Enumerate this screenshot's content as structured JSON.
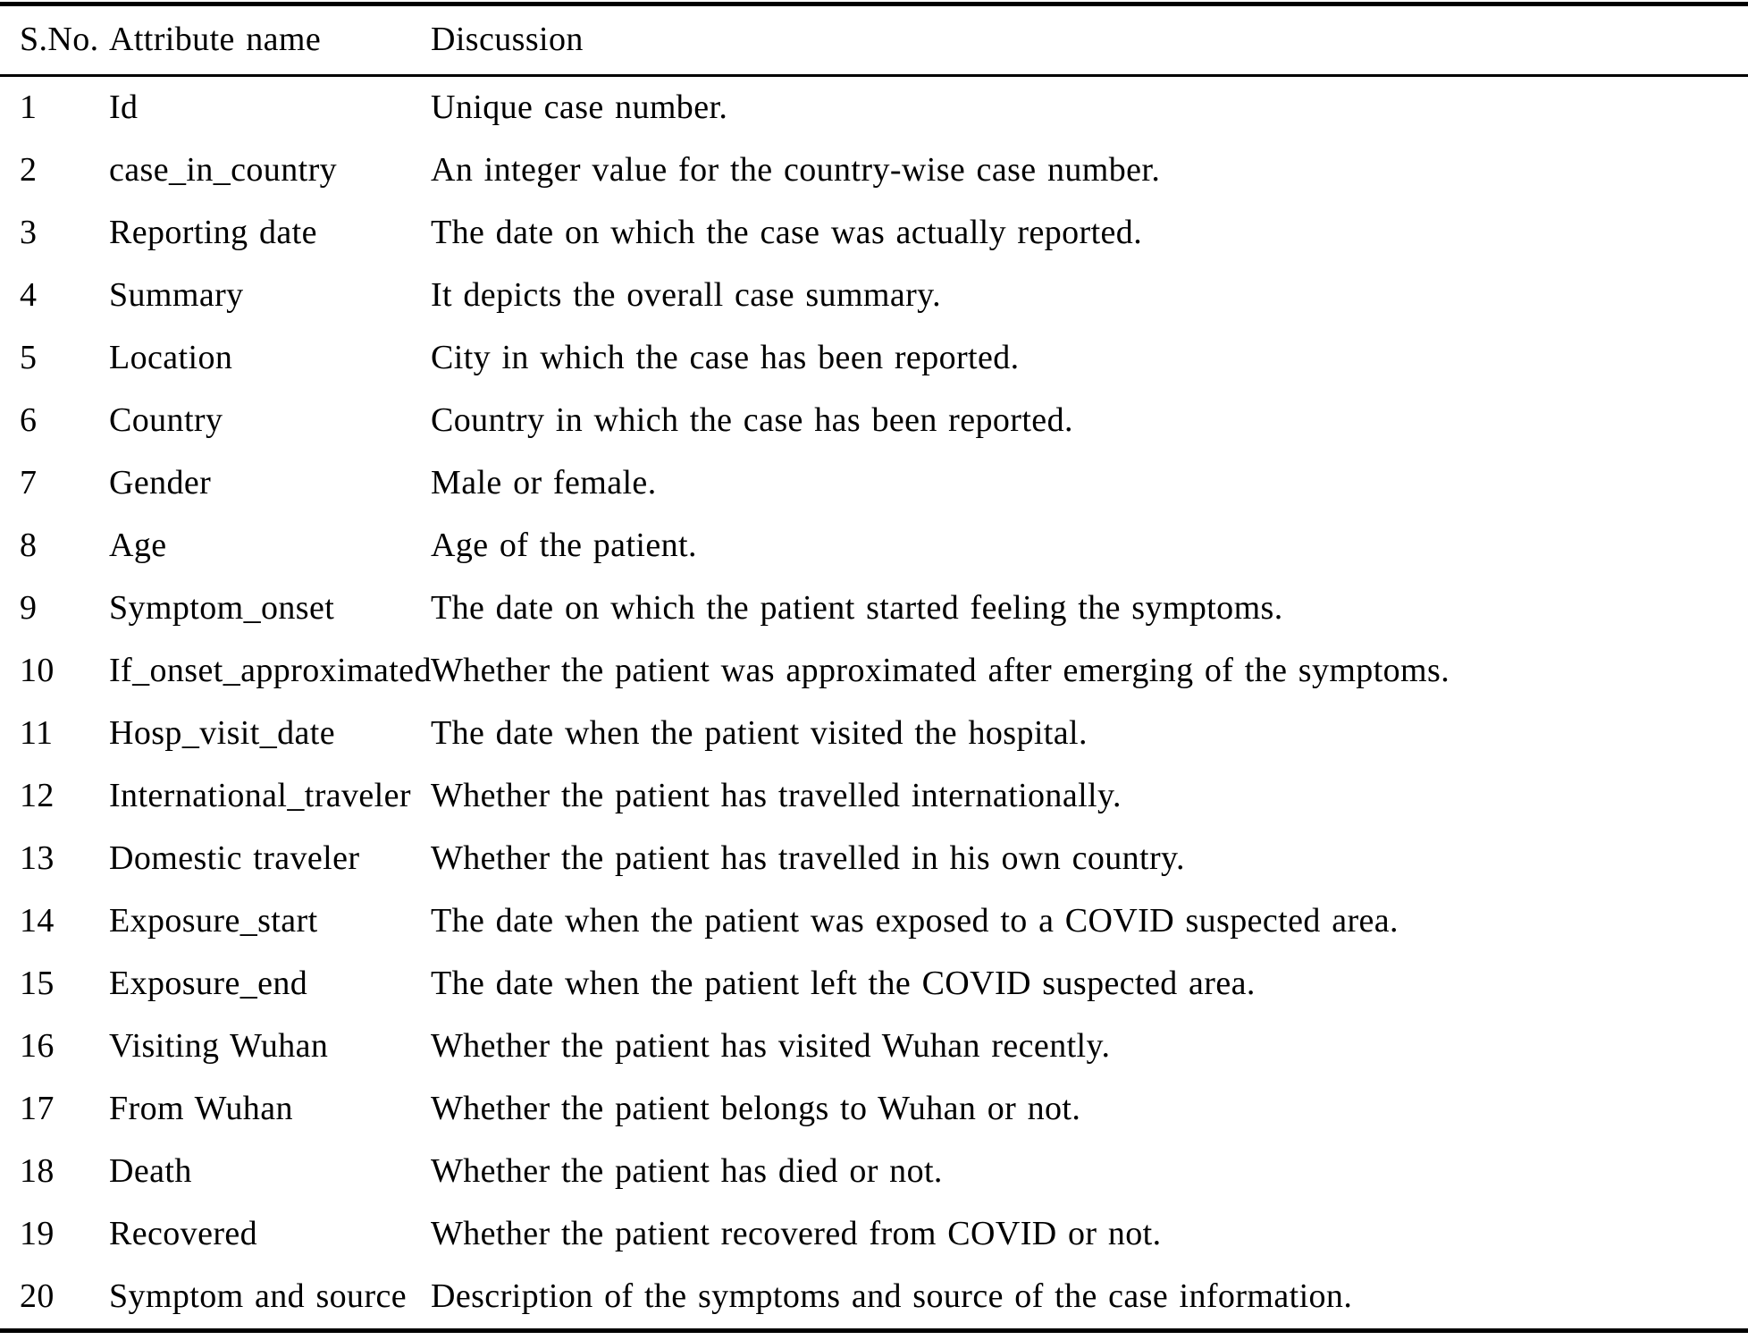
{
  "table": {
    "columns": [
      "S.No.",
      "Attribute name",
      "Discussion"
    ],
    "rows": [
      {
        "sno": "1",
        "attribute": "Id",
        "discussion": "Unique case number."
      },
      {
        "sno": "2",
        "attribute": "case_in_country",
        "discussion": "An integer value for the country-wise case number."
      },
      {
        "sno": "3",
        "attribute": "Reporting date",
        "discussion": "The date on which the case was actually reported."
      },
      {
        "sno": "4",
        "attribute": "Summary",
        "discussion": "It depicts the overall case summary."
      },
      {
        "sno": "5",
        "attribute": "Location",
        "discussion": "City in which the case has been reported."
      },
      {
        "sno": "6",
        "attribute": "Country",
        "discussion": "Country in which the case has been reported."
      },
      {
        "sno": "7",
        "attribute": "Gender",
        "discussion": "Male or female."
      },
      {
        "sno": "8",
        "attribute": "Age",
        "discussion": "Age of the patient."
      },
      {
        "sno": "9",
        "attribute": "Symptom_onset",
        "discussion": "The date on which the patient started feeling the symptoms."
      },
      {
        "sno": "10",
        "attribute": "If_onset_approximated",
        "discussion": "Whether the patient was approximated after emerging of the symptoms."
      },
      {
        "sno": "11",
        "attribute": "Hosp_visit_date",
        "discussion": "The date when the patient visited the hospital."
      },
      {
        "sno": "12",
        "attribute": "International_traveler",
        "discussion": "Whether the patient has travelled internationally."
      },
      {
        "sno": "13",
        "attribute": "Domestic traveler",
        "discussion": "Whether the patient has travelled in his own country."
      },
      {
        "sno": "14",
        "attribute": "Exposure_start",
        "discussion": "The date when the patient was exposed to a COVID suspected area."
      },
      {
        "sno": "15",
        "attribute": "Exposure_end",
        "discussion": "The date when the patient left the COVID suspected area."
      },
      {
        "sno": "16",
        "attribute": "Visiting Wuhan",
        "discussion": "Whether the patient has visited Wuhan recently."
      },
      {
        "sno": "17",
        "attribute": "From Wuhan",
        "discussion": "Whether the patient belongs to Wuhan or not."
      },
      {
        "sno": "18",
        "attribute": "Death",
        "discussion": "Whether the patient has died or not."
      },
      {
        "sno": "19",
        "attribute": "Recovered",
        "discussion": "Whether the patient recovered from COVID or not."
      },
      {
        "sno": "20",
        "attribute": "Symptom and source",
        "discussion": "Description of the symptoms and source of the case information."
      }
    ]
  }
}
